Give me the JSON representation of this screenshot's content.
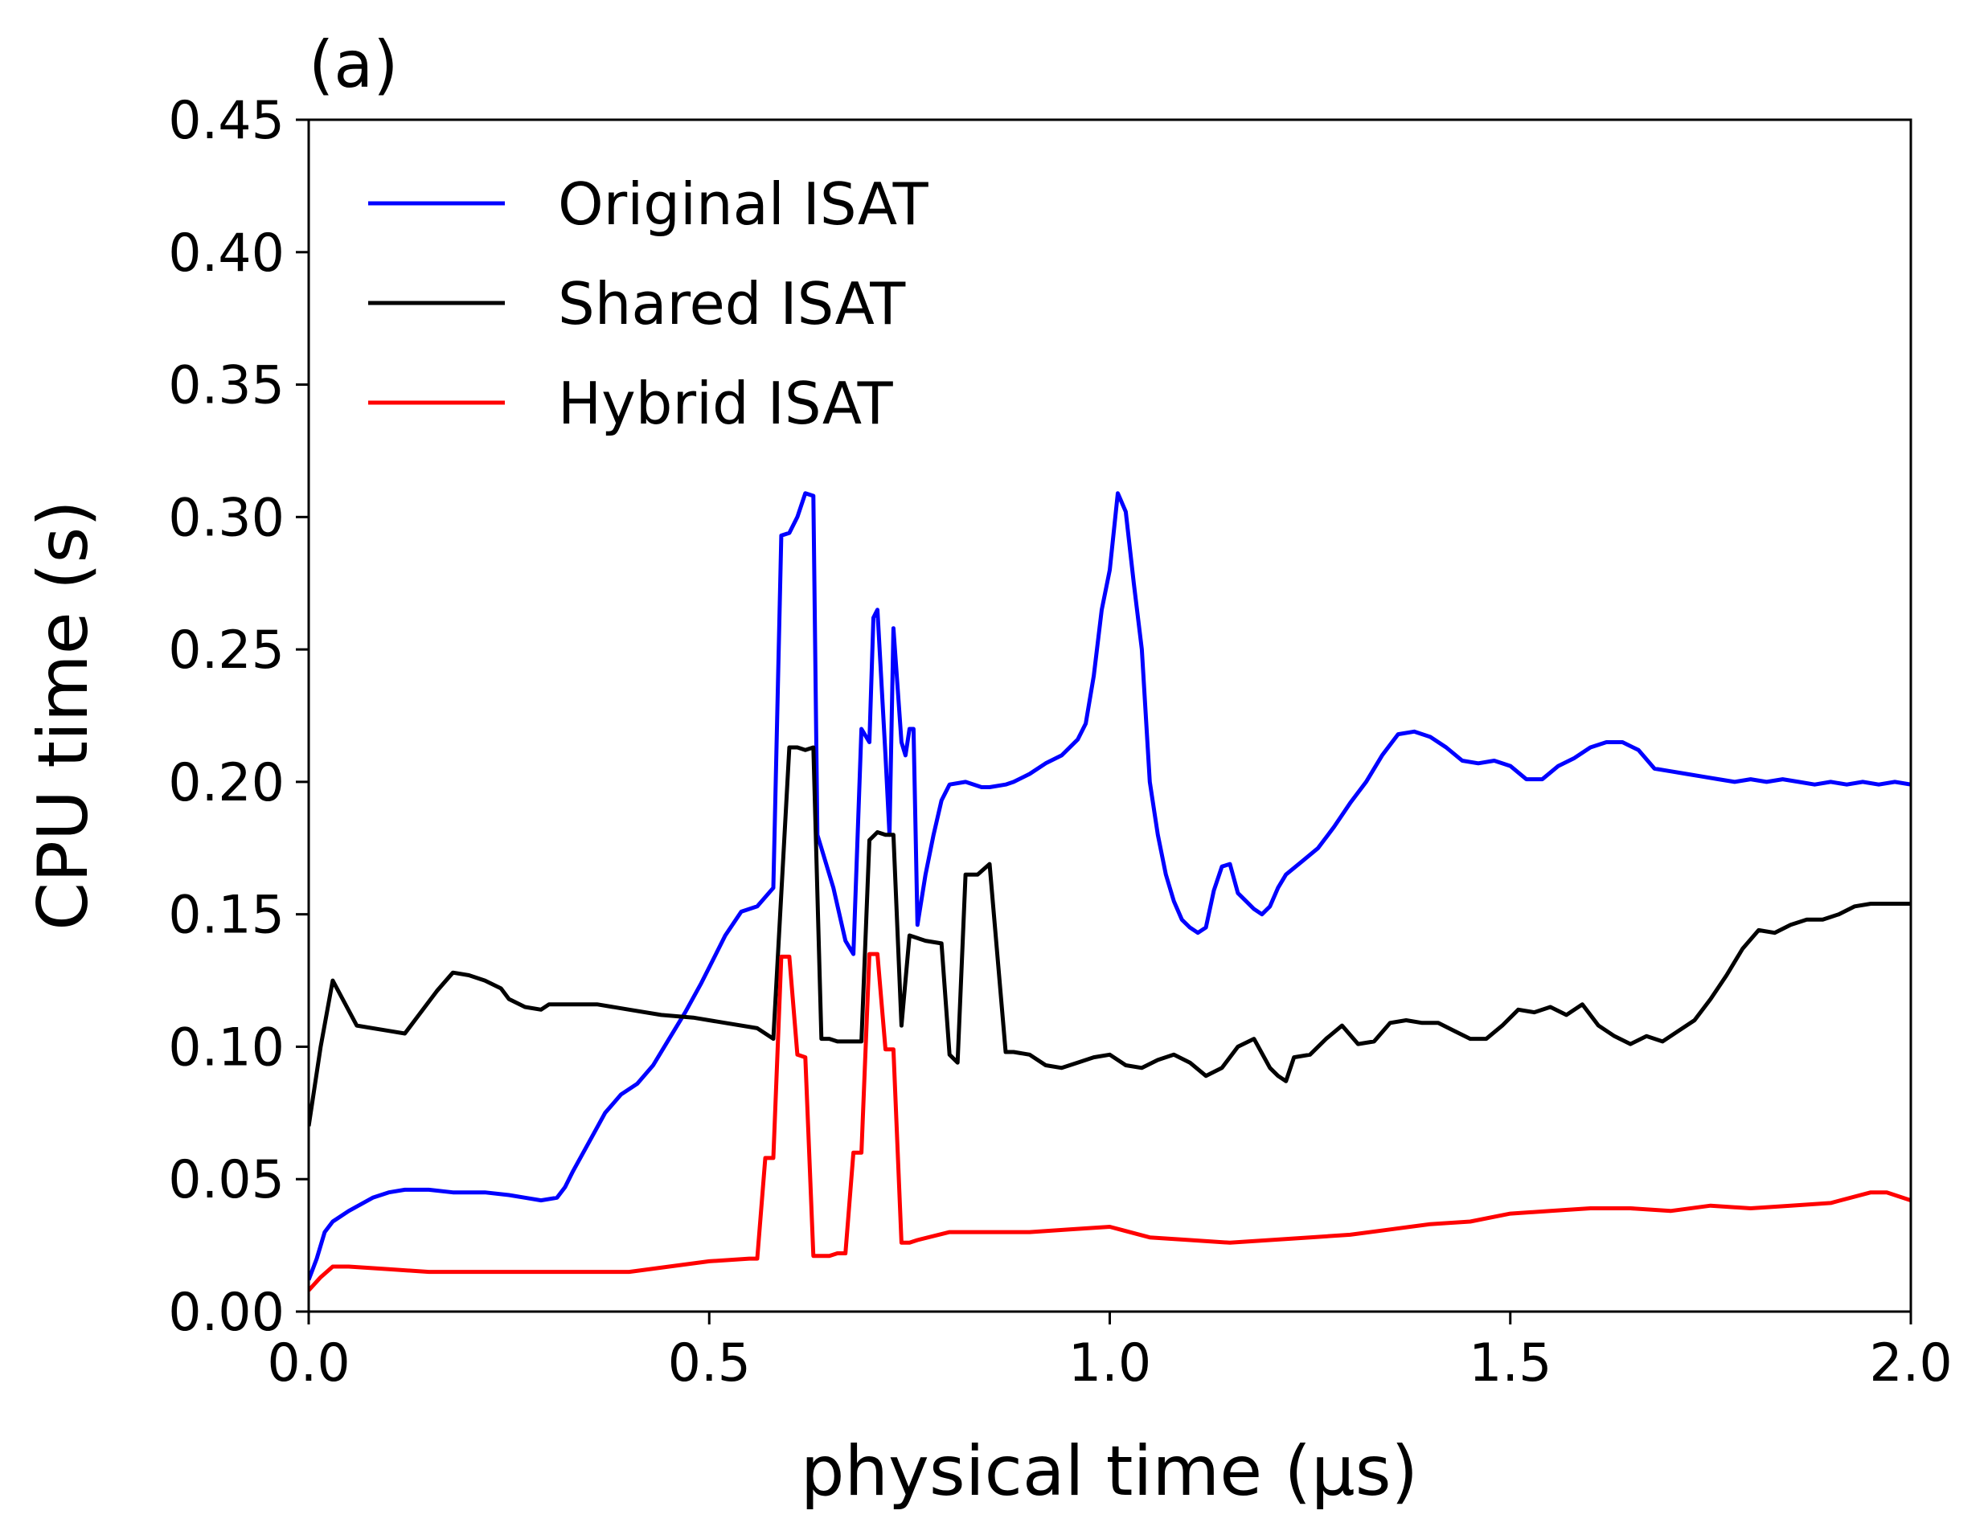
{
  "panel_label": "(a)",
  "chart_data": {
    "type": "line",
    "xlabel": "physical time (μs)",
    "ylabel": "CPU time (s)",
    "xlim": [
      0.0,
      2.0
    ],
    "ylim": [
      0.0,
      0.45
    ],
    "xticks": [
      "0.0",
      "0.5",
      "1.0",
      "1.5",
      "2.0"
    ],
    "yticks": [
      "0.00",
      "0.05",
      "0.10",
      "0.15",
      "0.20",
      "0.25",
      "0.30",
      "0.35",
      "0.40",
      "0.45"
    ],
    "grid": false,
    "legend_position": "top-left",
    "series": [
      {
        "name": "Original ISAT",
        "color": "#0000ff",
        "x": [
          0.0,
          0.01,
          0.02,
          0.03,
          0.05,
          0.08,
          0.1,
          0.12,
          0.15,
          0.18,
          0.22,
          0.25,
          0.27,
          0.29,
          0.31,
          0.32,
          0.33,
          0.35,
          0.37,
          0.39,
          0.41,
          0.43,
          0.45,
          0.47,
          0.49,
          0.5,
          0.52,
          0.54,
          0.56,
          0.58,
          0.59,
          0.6,
          0.61,
          0.62,
          0.63,
          0.635,
          0.64,
          0.655,
          0.67,
          0.68,
          0.69,
          0.7,
          0.705,
          0.71,
          0.72,
          0.725,
          0.73,
          0.74,
          0.745,
          0.75,
          0.755,
          0.76,
          0.77,
          0.78,
          0.79,
          0.8,
          0.82,
          0.84,
          0.85,
          0.87,
          0.88,
          0.9,
          0.92,
          0.94,
          0.96,
          0.97,
          0.98,
          0.99,
          1.0,
          1.01,
          1.02,
          1.03,
          1.04,
          1.05,
          1.06,
          1.07,
          1.08,
          1.09,
          1.1,
          1.11,
          1.12,
          1.13,
          1.14,
          1.15,
          1.16,
          1.17,
          1.18,
          1.19,
          1.2,
          1.21,
          1.22,
          1.24,
          1.26,
          1.28,
          1.3,
          1.32,
          1.34,
          1.36,
          1.38,
          1.4,
          1.42,
          1.44,
          1.46,
          1.48,
          1.5,
          1.52,
          1.54,
          1.56,
          1.58,
          1.6,
          1.62,
          1.64,
          1.66,
          1.68,
          1.7,
          1.72,
          1.74,
          1.76,
          1.78,
          1.8,
          1.82,
          1.84,
          1.86,
          1.88,
          1.9,
          1.92,
          1.94,
          1.96,
          1.98,
          2.0
        ],
        "values": [
          0.012,
          0.02,
          0.03,
          0.034,
          0.038,
          0.043,
          0.045,
          0.046,
          0.046,
          0.045,
          0.045,
          0.044,
          0.043,
          0.042,
          0.043,
          0.047,
          0.053,
          0.064,
          0.075,
          0.082,
          0.086,
          0.093,
          0.103,
          0.113,
          0.124,
          0.13,
          0.142,
          0.151,
          0.153,
          0.16,
          0.293,
          0.294,
          0.3,
          0.309,
          0.308,
          0.18,
          0.175,
          0.16,
          0.14,
          0.135,
          0.22,
          0.215,
          0.262,
          0.265,
          0.21,
          0.18,
          0.258,
          0.215,
          0.21,
          0.22,
          0.22,
          0.146,
          0.165,
          0.18,
          0.193,
          0.199,
          0.2,
          0.198,
          0.198,
          0.199,
          0.2,
          0.203,
          0.207,
          0.21,
          0.216,
          0.222,
          0.24,
          0.265,
          0.28,
          0.309,
          0.302,
          0.275,
          0.25,
          0.2,
          0.18,
          0.165,
          0.155,
          0.148,
          0.145,
          0.143,
          0.145,
          0.159,
          0.168,
          0.169,
          0.158,
          0.155,
          0.152,
          0.15,
          0.153,
          0.16,
          0.165,
          0.17,
          0.175,
          0.183,
          0.192,
          0.2,
          0.21,
          0.218,
          0.219,
          0.217,
          0.213,
          0.208,
          0.207,
          0.208,
          0.206,
          0.201,
          0.201,
          0.206,
          0.209,
          0.213,
          0.215,
          0.215,
          0.212,
          0.205,
          0.204,
          0.203,
          0.202,
          0.201,
          0.2,
          0.201,
          0.2,
          0.201,
          0.2,
          0.199,
          0.2,
          0.199,
          0.2,
          0.199,
          0.2,
          0.199
        ]
      },
      {
        "name": "Shared ISAT",
        "color": "#000000",
        "x": [
          0.0,
          0.015,
          0.03,
          0.06,
          0.1,
          0.12,
          0.14,
          0.16,
          0.18,
          0.2,
          0.22,
          0.24,
          0.25,
          0.27,
          0.29,
          0.3,
          0.32,
          0.36,
          0.4,
          0.44,
          0.48,
          0.52,
          0.56,
          0.58,
          0.6,
          0.61,
          0.62,
          0.63,
          0.64,
          0.65,
          0.66,
          0.68,
          0.69,
          0.7,
          0.71,
          0.72,
          0.73,
          0.74,
          0.75,
          0.76,
          0.77,
          0.79,
          0.8,
          0.81,
          0.82,
          0.835,
          0.85,
          0.87,
          0.88,
          0.9,
          0.92,
          0.94,
          0.96,
          0.98,
          1.0,
          1.02,
          1.04,
          1.06,
          1.08,
          1.1,
          1.12,
          1.14,
          1.16,
          1.18,
          1.2,
          1.21,
          1.22,
          1.23,
          1.25,
          1.27,
          1.29,
          1.31,
          1.33,
          1.35,
          1.37,
          1.39,
          1.41,
          1.43,
          1.45,
          1.47,
          1.49,
          1.51,
          1.53,
          1.55,
          1.57,
          1.59,
          1.61,
          1.63,
          1.65,
          1.67,
          1.69,
          1.71,
          1.73,
          1.75,
          1.77,
          1.79,
          1.81,
          1.83,
          1.85,
          1.87,
          1.89,
          1.91,
          1.93,
          1.95,
          1.97,
          2.0
        ],
        "values": [
          0.07,
          0.1,
          0.125,
          0.108,
          0.106,
          0.105,
          0.113,
          0.121,
          0.128,
          0.127,
          0.125,
          0.122,
          0.118,
          0.115,
          0.114,
          0.116,
          0.116,
          0.116,
          0.114,
          0.112,
          0.111,
          0.109,
          0.107,
          0.103,
          0.213,
          0.213,
          0.212,
          0.213,
          0.103,
          0.103,
          0.102,
          0.102,
          0.102,
          0.178,
          0.181,
          0.18,
          0.18,
          0.108,
          0.142,
          0.141,
          0.14,
          0.139,
          0.097,
          0.094,
          0.165,
          0.165,
          0.169,
          0.098,
          0.098,
          0.097,
          0.093,
          0.092,
          0.094,
          0.096,
          0.097,
          0.093,
          0.092,
          0.095,
          0.097,
          0.094,
          0.089,
          0.092,
          0.1,
          0.103,
          0.092,
          0.089,
          0.087,
          0.096,
          0.097,
          0.103,
          0.108,
          0.101,
          0.102,
          0.109,
          0.11,
          0.109,
          0.109,
          0.106,
          0.103,
          0.103,
          0.108,
          0.114,
          0.113,
          0.115,
          0.112,
          0.116,
          0.108,
          0.104,
          0.101,
          0.104,
          0.102,
          0.106,
          0.11,
          0.118,
          0.127,
          0.137,
          0.144,
          0.143,
          0.146,
          0.148,
          0.148,
          0.15,
          0.153,
          0.154,
          0.154,
          0.154
        ]
      },
      {
        "name": "Hybrid ISAT",
        "color": "#ff0000",
        "x": [
          0.0,
          0.015,
          0.03,
          0.05,
          0.1,
          0.15,
          0.2,
          0.25,
          0.3,
          0.35,
          0.4,
          0.45,
          0.5,
          0.55,
          0.56,
          0.57,
          0.58,
          0.59,
          0.6,
          0.61,
          0.62,
          0.63,
          0.64,
          0.65,
          0.66,
          0.67,
          0.68,
          0.69,
          0.7,
          0.71,
          0.72,
          0.73,
          0.74,
          0.75,
          0.76,
          0.8,
          0.85,
          0.9,
          0.95,
          1.0,
          1.05,
          1.1,
          1.15,
          1.2,
          1.25,
          1.3,
          1.35,
          1.4,
          1.45,
          1.5,
          1.55,
          1.6,
          1.65,
          1.7,
          1.75,
          1.8,
          1.85,
          1.9,
          1.95,
          1.97,
          2.0
        ],
        "values": [
          0.008,
          0.013,
          0.017,
          0.017,
          0.016,
          0.015,
          0.015,
          0.015,
          0.015,
          0.015,
          0.015,
          0.017,
          0.019,
          0.02,
          0.02,
          0.058,
          0.058,
          0.134,
          0.134,
          0.097,
          0.096,
          0.021,
          0.021,
          0.021,
          0.022,
          0.022,
          0.06,
          0.06,
          0.135,
          0.135,
          0.099,
          0.099,
          0.026,
          0.026,
          0.027,
          0.03,
          0.03,
          0.03,
          0.031,
          0.032,
          0.028,
          0.027,
          0.026,
          0.027,
          0.028,
          0.029,
          0.031,
          0.033,
          0.034,
          0.037,
          0.038,
          0.039,
          0.039,
          0.038,
          0.04,
          0.039,
          0.04,
          0.041,
          0.045,
          0.045,
          0.042
        ]
      }
    ]
  }
}
